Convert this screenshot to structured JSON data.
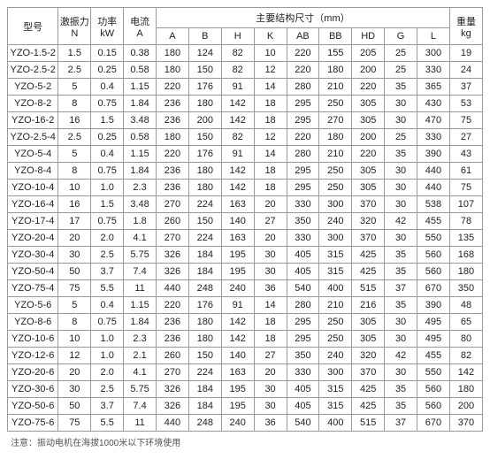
{
  "headers": {
    "model": "型号",
    "excitation": "激振力\nN",
    "power": "功率\nkW",
    "current": "电流\nA",
    "dim_group": "主要结构尺寸（mm）",
    "weight": "重量\nkg",
    "dim_cols": [
      "A",
      "B",
      "H",
      "K",
      "AB",
      "BB",
      "HD",
      "G",
      "L"
    ]
  },
  "rows": [
    [
      "YZO-1.5-2",
      "1.5",
      "0.15",
      "0.38",
      "180",
      "124",
      "82",
      "10",
      "220",
      "155",
      "205",
      "25",
      "300",
      "19"
    ],
    [
      "YZO-2.5-2",
      "2.5",
      "0.25",
      "0.58",
      "180",
      "150",
      "82",
      "12",
      "220",
      "180",
      "200",
      "25",
      "330",
      "24"
    ],
    [
      "YZO-5-2",
      "5",
      "0.4",
      "1.15",
      "220",
      "176",
      "91",
      "14",
      "280",
      "210",
      "220",
      "35",
      "365",
      "37"
    ],
    [
      "YZO-8-2",
      "8",
      "0.75",
      "1.84",
      "236",
      "180",
      "142",
      "18",
      "295",
      "250",
      "305",
      "30",
      "430",
      "53"
    ],
    [
      "YZO-16-2",
      "16",
      "1.5",
      "3.48",
      "236",
      "200",
      "142",
      "18",
      "295",
      "270",
      "305",
      "30",
      "470",
      "75"
    ],
    [
      "YZO-2.5-4",
      "2.5",
      "0.25",
      "0.58",
      "180",
      "150",
      "82",
      "12",
      "220",
      "180",
      "200",
      "25",
      "330",
      "27"
    ],
    [
      "YZO-5-4",
      "5",
      "0.4",
      "1.15",
      "220",
      "176",
      "91",
      "14",
      "280",
      "210",
      "220",
      "35",
      "390",
      "43"
    ],
    [
      "YZO-8-4",
      "8",
      "0.75",
      "1.84",
      "236",
      "180",
      "142",
      "18",
      "295",
      "250",
      "305",
      "30",
      "440",
      "61"
    ],
    [
      "YZO-10-4",
      "10",
      "1.0",
      "2.3",
      "236",
      "180",
      "142",
      "18",
      "295",
      "250",
      "305",
      "30",
      "440",
      "75"
    ],
    [
      "YZO-16-4",
      "16",
      "1.5",
      "3.48",
      "270",
      "224",
      "163",
      "20",
      "330",
      "300",
      "370",
      "30",
      "538",
      "107"
    ],
    [
      "YZO-17-4",
      "17",
      "0.75",
      "1.8",
      "260",
      "150",
      "140",
      "27",
      "350",
      "240",
      "320",
      "42",
      "455",
      "78"
    ],
    [
      "YZO-20-4",
      "20",
      "2.0",
      "4.1",
      "270",
      "224",
      "163",
      "20",
      "330",
      "300",
      "370",
      "30",
      "550",
      "135"
    ],
    [
      "YZO-30-4",
      "30",
      "2.5",
      "5.75",
      "326",
      "184",
      "195",
      "30",
      "405",
      "315",
      "425",
      "35",
      "560",
      "168"
    ],
    [
      "YZO-50-4",
      "50",
      "3.7",
      "7.4",
      "326",
      "184",
      "195",
      "30",
      "405",
      "315",
      "425",
      "35",
      "560",
      "180"
    ],
    [
      "YZO-75-4",
      "75",
      "5.5",
      "11",
      "440",
      "248",
      "240",
      "36",
      "540",
      "400",
      "515",
      "37",
      "670",
      "350"
    ],
    [
      "YZO-5-6",
      "5",
      "0.4",
      "1.15",
      "220",
      "176",
      "91",
      "14",
      "280",
      "210",
      "216",
      "35",
      "390",
      "48"
    ],
    [
      "YZO-8-6",
      "8",
      "0.75",
      "1.84",
      "236",
      "180",
      "142",
      "18",
      "295",
      "250",
      "305",
      "30",
      "495",
      "65"
    ],
    [
      "YZO-10-6",
      "10",
      "1.0",
      "2.3",
      "236",
      "180",
      "142",
      "18",
      "295",
      "250",
      "305",
      "30",
      "495",
      "80"
    ],
    [
      "YZO-12-6",
      "12",
      "1.0",
      "2.1",
      "260",
      "150",
      "140",
      "27",
      "350",
      "240",
      "320",
      "42",
      "455",
      "82"
    ],
    [
      "YZO-20-6",
      "20",
      "2.0",
      "4.1",
      "270",
      "224",
      "163",
      "20",
      "330",
      "300",
      "370",
      "30",
      "550",
      "142"
    ],
    [
      "YZO-30-6",
      "30",
      "2.5",
      "5.75",
      "326",
      "184",
      "195",
      "30",
      "405",
      "315",
      "425",
      "35",
      "560",
      "180"
    ],
    [
      "YZO-50-6",
      "50",
      "3.7",
      "7.4",
      "326",
      "184",
      "195",
      "30",
      "405",
      "315",
      "425",
      "35",
      "560",
      "200"
    ],
    [
      "YZO-75-6",
      "75",
      "5.5",
      "11",
      "440",
      "248",
      "240",
      "36",
      "540",
      "400",
      "515",
      "37",
      "670",
      "370"
    ]
  ],
  "footnote": "注意：振动电机在海拔1000米以下环境使用"
}
